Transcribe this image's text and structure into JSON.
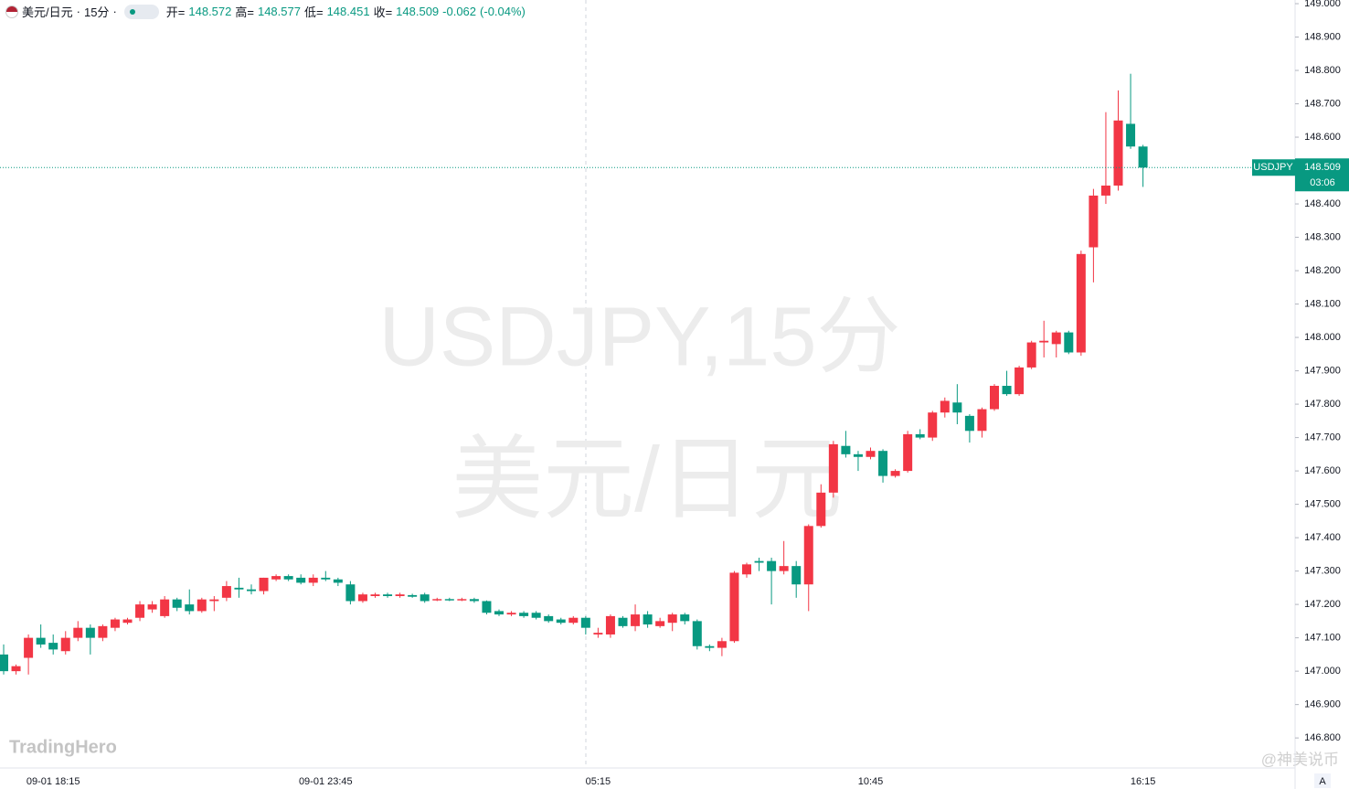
{
  "header": {
    "symbol": "美元/日元",
    "interval": "15分",
    "open_label": "开=",
    "high_label": "高=",
    "low_label": "低=",
    "close_label": "收=",
    "change": -0.062,
    "change_percent": {
      "value": -0.04,
      "label": "(-0.04%)"
    }
  },
  "watermark": {
    "line1": "USDJPY,15分",
    "line2": "美元/日元"
  },
  "logo": "TradingHero",
  "credit": "@神美说币",
  "price_tag": {
    "symbol": "USDJPY",
    "countdown": "03:06"
  },
  "axis_button": "A",
  "chart_data": {
    "type": "candlestick",
    "up_color": "#f23645",
    "down_color": "#089981",
    "x": [
      null,
      null,
      null,
      null,
      "09-01 18:15",
      null,
      null,
      null,
      null,
      null,
      null,
      null,
      null,
      null,
      null,
      null,
      null,
      null,
      null,
      null,
      null,
      null,
      null,
      null,
      null,
      null,
      "09-01 23:45",
      null,
      null,
      null,
      null,
      null,
      null,
      null,
      null,
      null,
      null,
      null,
      null,
      null,
      null,
      null,
      null,
      null,
      null,
      null,
      null,
      null,
      "05:15",
      null,
      null,
      null,
      null,
      null,
      null,
      null,
      null,
      null,
      null,
      null,
      null,
      null,
      null,
      null,
      null,
      null,
      null,
      null,
      null,
      null,
      "10:45",
      null,
      null,
      null,
      null,
      null,
      null,
      null,
      null,
      null,
      null,
      null,
      null,
      null,
      null,
      null,
      null,
      null,
      null,
      null,
      null,
      null,
      "16:15"
    ],
    "open": [
      147.05,
      147.0,
      147.04,
      147.1,
      147.085,
      147.06,
      147.1,
      147.13,
      147.1,
      147.13,
      147.145,
      147.16,
      147.185,
      147.165,
      147.215,
      147.2,
      147.18,
      147.21,
      147.22,
      147.25,
      147.245,
      147.24,
      147.275,
      147.285,
      147.28,
      147.265,
      147.28,
      147.275,
      147.26,
      147.21,
      147.225,
      147.23,
      147.225,
      147.228,
      147.23,
      147.212,
      147.216,
      147.212,
      147.216,
      147.21,
      147.18,
      147.17,
      147.175,
      147.175,
      147.165,
      147.155,
      147.145,
      147.16,
      147.11,
      147.11,
      147.16,
      147.135,
      147.17,
      147.135,
      147.145,
      147.17,
      147.15,
      147.075,
      147.07,
      147.09,
      147.29,
      147.33,
      147.33,
      147.3,
      147.315,
      147.26,
      147.435,
      147.535,
      147.675,
      147.65,
      147.642,
      147.66,
      147.585,
      147.6,
      147.71,
      147.7,
      147.775,
      147.805,
      147.765,
      147.72,
      147.785,
      147.855,
      147.83,
      147.91,
      147.985,
      147.98,
      148.015,
      147.955,
      148.27,
      148.425,
      148.455,
      148.64,
      148.572
    ],
    "high": [
      147.08,
      147.02,
      147.11,
      147.14,
      147.11,
      147.12,
      147.15,
      147.14,
      147.14,
      147.16,
      147.16,
      147.21,
      147.21,
      147.225,
      147.22,
      147.245,
      147.22,
      147.225,
      147.27,
      147.28,
      147.26,
      147.28,
      147.29,
      147.29,
      147.29,
      147.29,
      147.3,
      147.28,
      147.27,
      147.235,
      147.235,
      147.235,
      147.235,
      147.232,
      147.235,
      147.22,
      147.22,
      147.22,
      147.22,
      147.212,
      147.185,
      147.18,
      147.18,
      147.18,
      147.17,
      147.16,
      147.165,
      147.165,
      147.13,
      147.17,
      147.165,
      147.2,
      147.18,
      147.16,
      147.175,
      147.175,
      147.155,
      147.08,
      147.1,
      147.3,
      147.325,
      147.34,
      147.34,
      147.39,
      147.33,
      147.44,
      147.56,
      147.69,
      147.72,
      147.66,
      147.67,
      147.665,
      147.605,
      147.72,
      147.725,
      147.78,
      147.82,
      147.86,
      147.77,
      147.79,
      147.86,
      147.9,
      147.915,
      147.99,
      148.05,
      148.02,
      148.02,
      148.26,
      148.445,
      148.675,
      148.74,
      148.79,
      148.577
    ],
    "low": [
      146.99,
      146.99,
      146.99,
      147.07,
      147.05,
      147.05,
      147.09,
      147.05,
      147.09,
      147.12,
      147.14,
      147.15,
      147.175,
      147.16,
      147.18,
      147.17,
      147.175,
      147.18,
      147.21,
      147.22,
      147.23,
      147.23,
      147.27,
      147.27,
      147.26,
      147.255,
      147.27,
      147.255,
      147.2,
      147.205,
      147.22,
      147.22,
      147.22,
      147.22,
      147.205,
      147.21,
      147.21,
      147.21,
      147.205,
      147.17,
      147.165,
      147.165,
      147.16,
      147.155,
      147.145,
      147.14,
      147.14,
      147.11,
      147.1,
      147.1,
      147.13,
      147.12,
      147.13,
      147.13,
      147.12,
      147.14,
      147.065,
      147.06,
      147.045,
      147.085,
      147.28,
      147.3,
      147.2,
      147.29,
      147.22,
      147.18,
      147.43,
      147.52,
      147.64,
      147.6,
      147.635,
      147.565,
      147.58,
      147.595,
      147.695,
      147.69,
      147.76,
      147.74,
      147.685,
      147.7,
      147.78,
      147.825,
      147.825,
      147.905,
      147.94,
      147.94,
      147.95,
      147.945,
      148.165,
      148.4,
      148.44,
      148.565,
      148.451
    ],
    "close": [
      147.0,
      147.015,
      147.1,
      147.08,
      147.065,
      147.1,
      147.13,
      147.1,
      147.135,
      147.155,
      147.155,
      147.2,
      147.2,
      147.215,
      147.19,
      147.18,
      147.215,
      147.215,
      147.255,
      147.245,
      147.24,
      147.28,
      147.285,
      147.275,
      147.265,
      147.28,
      147.275,
      147.265,
      147.21,
      147.23,
      147.23,
      147.225,
      147.23,
      147.223,
      147.21,
      147.216,
      147.212,
      147.216,
      147.21,
      147.175,
      147.17,
      147.175,
      147.165,
      147.16,
      147.15,
      147.145,
      147.16,
      147.13,
      147.115,
      147.165,
      147.135,
      147.17,
      147.14,
      147.15,
      147.17,
      147.15,
      147.075,
      147.07,
      147.09,
      147.295,
      147.32,
      147.325,
      147.3,
      147.315,
      147.26,
      147.435,
      147.535,
      147.68,
      147.65,
      147.642,
      147.66,
      147.585,
      147.6,
      147.71,
      147.7,
      147.775,
      147.81,
      147.775,
      147.72,
      147.785,
      147.855,
      147.83,
      147.91,
      147.985,
      147.99,
      148.015,
      147.955,
      148.25,
      148.425,
      148.455,
      148.65,
      148.572,
      148.509
    ],
    "ylim": [
      146.71,
      149.011
    ],
    "yticks": [
      {
        "value": 149,
        "label": "149.000"
      },
      {
        "value": 148.9,
        "label": "148.900"
      },
      {
        "value": 148.8,
        "label": "148.800"
      },
      {
        "value": 148.7,
        "label": "148.700"
      },
      {
        "value": 148.6,
        "label": "148.600"
      },
      {
        "value": 148.5,
        "label": "148.500"
      },
      {
        "value": 148.4,
        "label": "148.400"
      },
      {
        "value": 148.3,
        "label": "148.300"
      },
      {
        "value": 148.2,
        "label": "148.200"
      },
      {
        "value": 148.1,
        "label": "148.100"
      },
      {
        "value": 148,
        "label": "148.000"
      },
      {
        "value": 147.9,
        "label": "147.900"
      },
      {
        "value": 147.8,
        "label": "147.800"
      },
      {
        "value": 147.7,
        "label": "147.700"
      },
      {
        "value": 147.6,
        "label": "147.600"
      },
      {
        "value": 147.5,
        "label": "147.500"
      },
      {
        "value": 147.4,
        "label": "147.400"
      },
      {
        "value": 147.3,
        "label": "147.300"
      },
      {
        "value": 147.2,
        "label": "147.200"
      },
      {
        "value": 147.1,
        "label": "147.100"
      },
      {
        "value": 147,
        "label": "147.000"
      },
      {
        "value": 146.9,
        "label": "146.900"
      },
      {
        "value": 146.8,
        "label": "146.800"
      }
    ]
  }
}
